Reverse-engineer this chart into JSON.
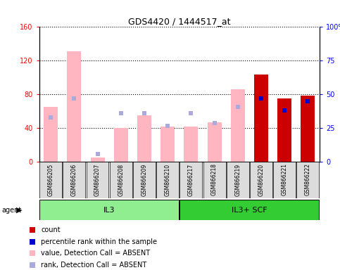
{
  "title": "GDS4420 / 1444517_at",
  "samples": [
    "GSM866205",
    "GSM866206",
    "GSM866207",
    "GSM866208",
    "GSM866209",
    "GSM866210",
    "GSM866217",
    "GSM866218",
    "GSM866219",
    "GSM866220",
    "GSM866221",
    "GSM866222"
  ],
  "count_values": [
    0,
    0,
    0,
    0,
    0,
    0,
    0,
    0,
    0,
    104,
    75,
    79
  ],
  "rank_values": [
    0,
    0,
    0,
    0,
    0,
    0,
    0,
    0,
    0,
    47,
    38,
    45
  ],
  "absent_value": [
    65,
    131,
    5,
    40,
    55,
    42,
    42,
    47,
    86,
    0,
    0,
    0
  ],
  "absent_rank": [
    33,
    47,
    6,
    36,
    36,
    27,
    36,
    29,
    41,
    0,
    0,
    0
  ],
  "ylim_left": [
    0,
    160
  ],
  "ylim_right": [
    0,
    100
  ],
  "yticks_left": [
    0,
    40,
    80,
    120,
    160
  ],
  "yticks_right": [
    0,
    25,
    50,
    75,
    100
  ],
  "count_color": "#CC0000",
  "rank_color": "#0000CC",
  "absent_val_color": "#FFB6C1",
  "absent_rank_color": "#AAAADD",
  "il3_color": "#90EE90",
  "scf_color": "#33CC33",
  "figsize": [
    4.83,
    3.84
  ],
  "dpi": 100
}
